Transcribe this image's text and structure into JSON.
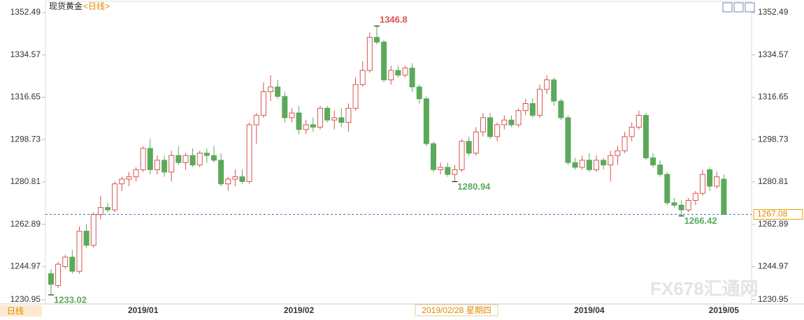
{
  "chart_data": {
    "type": "candlestick",
    "title": "现货黄金",
    "period": "<日线>",
    "period_tab": "日线",
    "cursor_label": "2019/02/28 星期四",
    "watermark": "FX678汇通网",
    "up_color": "#d9534f",
    "down_color": "#5ba95b",
    "ylim": [
      1230.95,
      1352.49
    ],
    "yticks": [
      1352.49,
      1334.57,
      1316.65,
      1298.73,
      1280.81,
      1262.89,
      1244.97,
      1230.95
    ],
    "last_price": 1267.08,
    "categories": [
      null,
      null,
      null,
      null,
      null,
      null,
      null,
      null,
      null,
      null,
      null,
      null,
      null,
      "2019/01",
      null,
      null,
      null,
      null,
      null,
      null,
      null,
      null,
      null,
      null,
      null,
      null,
      null,
      null,
      null,
      null,
      null,
      null,
      null,
      null,
      null,
      "2019/02",
      null,
      null,
      null,
      null,
      null,
      null,
      null,
      null,
      null,
      null,
      null,
      null,
      null,
      null,
      null,
      null,
      null,
      null,
      null,
      null,
      null,
      null,
      null,
      null,
      null,
      null,
      null,
      null,
      null,
      null,
      null,
      null,
      null,
      null,
      null,
      null,
      null,
      null,
      null,
      null,
      "2019/04",
      null,
      null,
      null,
      null,
      null,
      null,
      null,
      null,
      null,
      null,
      null,
      null,
      null,
      null,
      null,
      null,
      null,
      null,
      "2019/05"
    ],
    "open": [
      1242,
      1237,
      1245,
      1249,
      1243,
      1260,
      1254,
      1267,
      1270,
      1269,
      1280,
      1282,
      1283,
      1286,
      1295,
      1286,
      1290,
      1285,
      1292,
      1289,
      1292,
      1288,
      1293,
      1292,
      1290,
      1280,
      1282,
      1283,
      1281,
      1305,
      1309,
      1319,
      1321,
      1317,
      1308,
      1310,
      1303,
      1305,
      1304,
      1312,
      1307,
      1308,
      1306,
      1312,
      1322,
      1328,
      1342,
      1340,
      1324,
      1328,
      1326,
      1329,
      1321,
      1316,
      1297,
      1286,
      1287,
      1284,
      1286,
      1298,
      1293,
      1302,
      1308,
      1300,
      1305,
      1307,
      1305,
      1311,
      1314,
      1309,
      1320,
      1324,
      1315,
      1308,
      1289,
      1287,
      1290,
      1286,
      1290,
      1288,
      1292,
      1294,
      1300,
      1304,
      1309,
      1291,
      1288,
      1284,
      1272,
      1271,
      1269,
      1273,
      1276,
      1286,
      1279,
      1282
    ],
    "high": [
      1244,
      1247,
      1250,
      1252,
      1262,
      1263,
      1268,
      1275,
      1272,
      1281,
      1283,
      1285,
      1287,
      1296,
      1299,
      1292,
      1292,
      1294,
      1296,
      1293,
      1295,
      1294,
      1295,
      1296,
      1293,
      1283,
      1286,
      1286,
      1306,
      1310,
      1323,
      1326,
      1324,
      1319,
      1312,
      1313,
      1307,
      1308,
      1313,
      1313,
      1311,
      1312,
      1314,
      1325,
      1332,
      1344,
      1346.8,
      1341,
      1330,
      1330,
      1330,
      1331,
      1322,
      1317,
      1298,
      1289,
      1289,
      1288,
      1299,
      1300,
      1304,
      1310,
      1310,
      1306,
      1309,
      1309,
      1312,
      1316,
      1316,
      1322,
      1326,
      1325,
      1316,
      1309,
      1291,
      1292,
      1293,
      1292,
      1291,
      1294,
      1296,
      1302,
      1306,
      1311,
      1310,
      1293,
      1290,
      1285,
      1274,
      1273,
      1274,
      1277,
      1286,
      1287,
      1285,
      1284
    ],
    "low": [
      1233.02,
      1236,
      1244,
      1242,
      1242,
      1253,
      1253,
      1265,
      1268,
      1268,
      1277,
      1279,
      1281,
      1285,
      1284,
      1284,
      1283,
      1281,
      1288,
      1286,
      1287,
      1287,
      1289,
      1289,
      1279,
      1277,
      1279,
      1280,
      1280,
      1297,
      1308,
      1315,
      1316,
      1306,
      1306,
      1301,
      1301,
      1302,
      1303,
      1306,
      1303,
      1304,
      1302,
      1311,
      1321,
      1327,
      1339,
      1323,
      1322,
      1325,
      1325,
      1319,
      1314,
      1296,
      1285,
      1284,
      1283,
      1280.94,
      1285,
      1292,
      1292,
      1300,
      1299,
      1298,
      1303,
      1304,
      1304,
      1309,
      1308,
      1308,
      1318,
      1313,
      1307,
      1288,
      1286,
      1286,
      1285,
      1285,
      1286,
      1281,
      1288,
      1293,
      1298,
      1303,
      1290,
      1287,
      1283,
      1271,
      1270,
      1266.42,
      1268,
      1271,
      1275,
      1277,
      1278,
      1267
    ],
    "close": [
      1237.5,
      1246,
      1249,
      1243,
      1260,
      1254,
      1267,
      1270,
      1269,
      1280,
      1282,
      1283,
      1286,
      1295,
      1286,
      1290,
      1285,
      1292,
      1289,
      1292,
      1288,
      1293,
      1292,
      1290,
      1280,
      1282,
      1283,
      1281,
      1305,
      1309,
      1319,
      1321,
      1317,
      1308,
      1310,
      1303,
      1305,
      1304,
      1312,
      1307,
      1308,
      1306,
      1312,
      1322,
      1328,
      1342,
      1340,
      1324,
      1328,
      1326,
      1329,
      1321,
      1316,
      1297,
      1286,
      1287,
      1284,
      1286,
      1298,
      1293,
      1302,
      1308,
      1300,
      1305,
      1307,
      1305,
      1311,
      1314,
      1309,
      1320,
      1324,
      1315,
      1308,
      1289,
      1287,
      1290,
      1286,
      1290,
      1288,
      1292,
      1294,
      1300,
      1304,
      1309,
      1291,
      1288,
      1284,
      1272,
      1271,
      1269,
      1273,
      1276,
      1284,
      1279,
      1283,
      1267.08
    ]
  }
}
